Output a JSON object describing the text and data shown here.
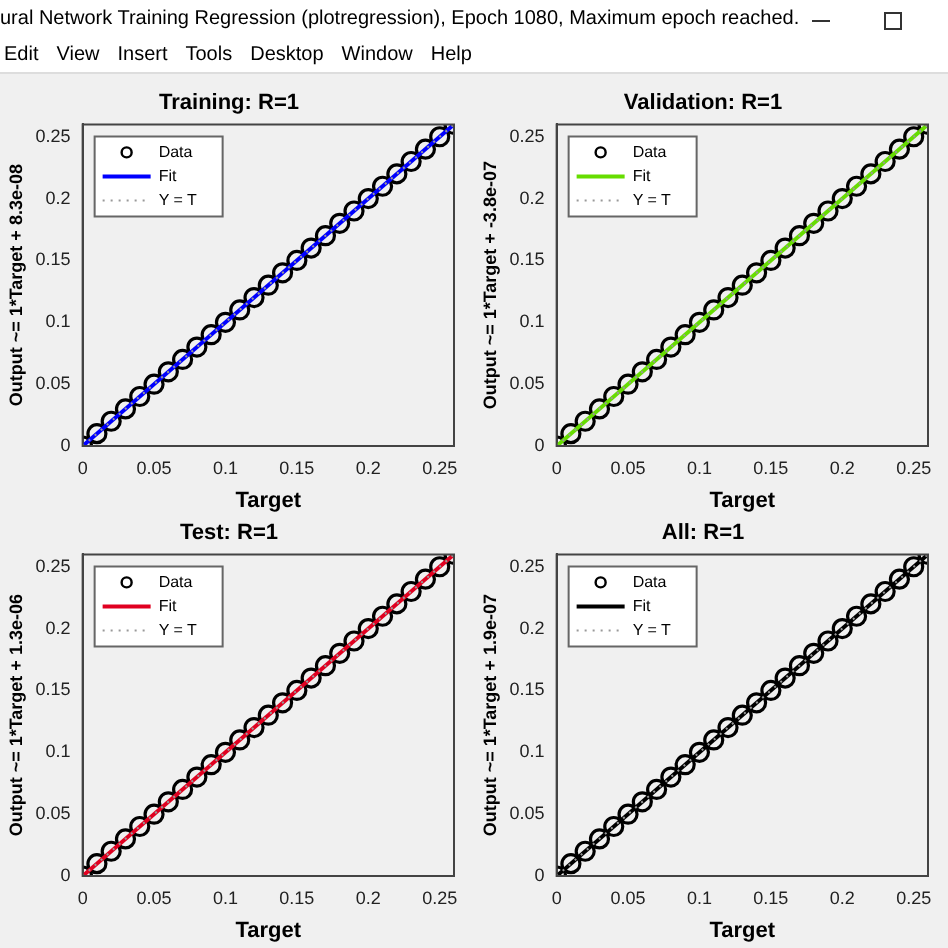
{
  "chart_data": [
    {
      "type": "scatter",
      "title": "Training: R=1",
      "xlabel": "Target",
      "ylabel": "Output ~= 1*Target + 8.3e-08",
      "annotations": [
        "ural Network Training Regression (plotregression), Epoch 1080, Maximum epoch reached.",
        "Edit",
        "View",
        "Insert",
        "Tools",
        "Desktop",
        "Window",
        "Help"
      ],
      "xlim": [
        0,
        0.26
      ],
      "ylim": [
        0,
        0.26
      ],
      "xticks": [
        0,
        0.05,
        0.1,
        0.15,
        0.2,
        0.25
      ],
      "yticks": [
        0,
        0.05,
        0.1,
        0.15,
        0.2,
        0.25
      ],
      "grid": false,
      "legend": "top left",
      "series": [
        {
          "name": "Data",
          "type": "scatter",
          "marker": "circle",
          "color": "#000000",
          "x": [
            0,
            0.01,
            0.02,
            0.03,
            0.04,
            0.05,
            0.06,
            0.07,
            0.08,
            0.09,
            0.1,
            0.11,
            0.12,
            0.13,
            0.14,
            0.15,
            0.16,
            0.17,
            0.18,
            0.19,
            0.2,
            0.21,
            0.22,
            0.23,
            0.24,
            0.25,
            0.26
          ],
          "values": [
            0,
            0.01,
            0.02,
            0.03,
            0.04,
            0.05,
            0.06,
            0.07,
            0.08,
            0.09,
            0.1,
            0.11,
            0.12,
            0.13,
            0.14,
            0.15,
            0.16,
            0.17,
            0.18,
            0.19,
            0.2,
            0.21,
            0.22,
            0.23,
            0.24,
            0.25,
            0.26
          ]
        },
        {
          "name": "Fit",
          "type": "line",
          "marker": "none",
          "line_style": "solid",
          "color": "#0000ff",
          "x": [
            0,
            0.26
          ],
          "values": [
            0,
            0.26
          ]
        },
        {
          "name": "Y = T",
          "type": "line",
          "marker": "none",
          "line_style": "dotted",
          "color": "#999999",
          "x": [
            0,
            0.26
          ],
          "values": [
            0,
            0.26
          ]
        }
      ]
    },
    {
      "type": "scatter",
      "title": "Validation: R=1",
      "xlabel": "Target",
      "ylabel": "Output ~= 1*Target + -3.8e-07",
      "xlim": [
        0,
        0.26
      ],
      "ylim": [
        0,
        0.26
      ],
      "xticks": [
        0,
        0.05,
        0.1,
        0.15,
        0.2,
        0.25
      ],
      "yticks": [
        0,
        0.05,
        0.1,
        0.15,
        0.2,
        0.25
      ],
      "grid": false,
      "legend": "top left",
      "series": [
        {
          "name": "Data",
          "type": "scatter",
          "marker": "circle",
          "color": "#000000",
          "x": [
            0,
            0.01,
            0.02,
            0.03,
            0.04,
            0.05,
            0.06,
            0.07,
            0.08,
            0.09,
            0.1,
            0.11,
            0.12,
            0.13,
            0.14,
            0.15,
            0.16,
            0.17,
            0.18,
            0.19,
            0.2,
            0.21,
            0.22,
            0.23,
            0.24,
            0.25,
            0.26
          ],
          "values": [
            0,
            0.01,
            0.02,
            0.03,
            0.04,
            0.05,
            0.06,
            0.07,
            0.08,
            0.09,
            0.1,
            0.11,
            0.12,
            0.13,
            0.14,
            0.15,
            0.16,
            0.17,
            0.18,
            0.19,
            0.2,
            0.21,
            0.22,
            0.23,
            0.24,
            0.25,
            0.26
          ]
        },
        {
          "name": "Fit",
          "type": "line",
          "marker": "none",
          "line_style": "solid",
          "color": "#66dd00",
          "x": [
            0,
            0.26
          ],
          "values": [
            0,
            0.26
          ]
        },
        {
          "name": "Y = T",
          "type": "line",
          "marker": "none",
          "line_style": "dotted",
          "color": "#999999",
          "x": [
            0,
            0.26
          ],
          "values": [
            0,
            0.26
          ]
        }
      ]
    },
    {
      "type": "scatter",
      "title": "Test: R=1",
      "xlabel": "Target",
      "ylabel": "Output ~= 1*Target + 1.3e-06",
      "xlim": [
        0,
        0.26
      ],
      "ylim": [
        0,
        0.26
      ],
      "xticks": [
        0,
        0.05,
        0.1,
        0.15,
        0.2,
        0.25
      ],
      "yticks": [
        0,
        0.05,
        0.1,
        0.15,
        0.2,
        0.25
      ],
      "grid": false,
      "legend": "top left",
      "series": [
        {
          "name": "Data",
          "type": "scatter",
          "marker": "circle",
          "color": "#000000",
          "x": [
            0,
            0.01,
            0.02,
            0.03,
            0.04,
            0.05,
            0.06,
            0.07,
            0.08,
            0.09,
            0.1,
            0.11,
            0.12,
            0.13,
            0.14,
            0.15,
            0.16,
            0.17,
            0.18,
            0.19,
            0.2,
            0.21,
            0.22,
            0.23,
            0.24,
            0.25,
            0.26
          ],
          "values": [
            0,
            0.01,
            0.02,
            0.03,
            0.04,
            0.05,
            0.06,
            0.07,
            0.08,
            0.09,
            0.1,
            0.11,
            0.12,
            0.13,
            0.14,
            0.15,
            0.16,
            0.17,
            0.18,
            0.19,
            0.2,
            0.21,
            0.22,
            0.23,
            0.24,
            0.25,
            0.26
          ]
        },
        {
          "name": "Fit",
          "type": "line",
          "marker": "none",
          "line_style": "solid",
          "color": "#e00020",
          "x": [
            0,
            0.26
          ],
          "values": [
            0,
            0.26
          ]
        },
        {
          "name": "Y = T",
          "type": "line",
          "marker": "none",
          "line_style": "dotted",
          "color": "#999999",
          "x": [
            0,
            0.26
          ],
          "values": [
            0,
            0.26
          ]
        }
      ]
    },
    {
      "type": "scatter",
      "title": "All: R=1",
      "xlabel": "Target",
      "ylabel": "Output ~= 1*Target + 1.9e-07",
      "xlim": [
        0,
        0.26
      ],
      "ylim": [
        0,
        0.26
      ],
      "xticks": [
        0,
        0.05,
        0.1,
        0.15,
        0.2,
        0.25
      ],
      "yticks": [
        0,
        0.05,
        0.1,
        0.15,
        0.2,
        0.25
      ],
      "grid": false,
      "legend": "top left",
      "series": [
        {
          "name": "Data",
          "type": "scatter",
          "marker": "circle",
          "color": "#000000",
          "x": [
            0,
            0.01,
            0.02,
            0.03,
            0.04,
            0.05,
            0.06,
            0.07,
            0.08,
            0.09,
            0.1,
            0.11,
            0.12,
            0.13,
            0.14,
            0.15,
            0.16,
            0.17,
            0.18,
            0.19,
            0.2,
            0.21,
            0.22,
            0.23,
            0.24,
            0.25,
            0.26
          ],
          "values": [
            0,
            0.01,
            0.02,
            0.03,
            0.04,
            0.05,
            0.06,
            0.07,
            0.08,
            0.09,
            0.1,
            0.11,
            0.12,
            0.13,
            0.14,
            0.15,
            0.16,
            0.17,
            0.18,
            0.19,
            0.2,
            0.21,
            0.22,
            0.23,
            0.24,
            0.25,
            0.26
          ]
        },
        {
          "name": "Fit",
          "type": "line",
          "marker": "none",
          "line_style": "solid",
          "color": "#000000",
          "x": [
            0,
            0.26
          ],
          "values": [
            0,
            0.26
          ]
        },
        {
          "name": "Y = T",
          "type": "line",
          "marker": "none",
          "line_style": "dotted",
          "color": "#999999",
          "x": [
            0,
            0.26
          ],
          "values": [
            0,
            0.26
          ]
        }
      ]
    }
  ]
}
